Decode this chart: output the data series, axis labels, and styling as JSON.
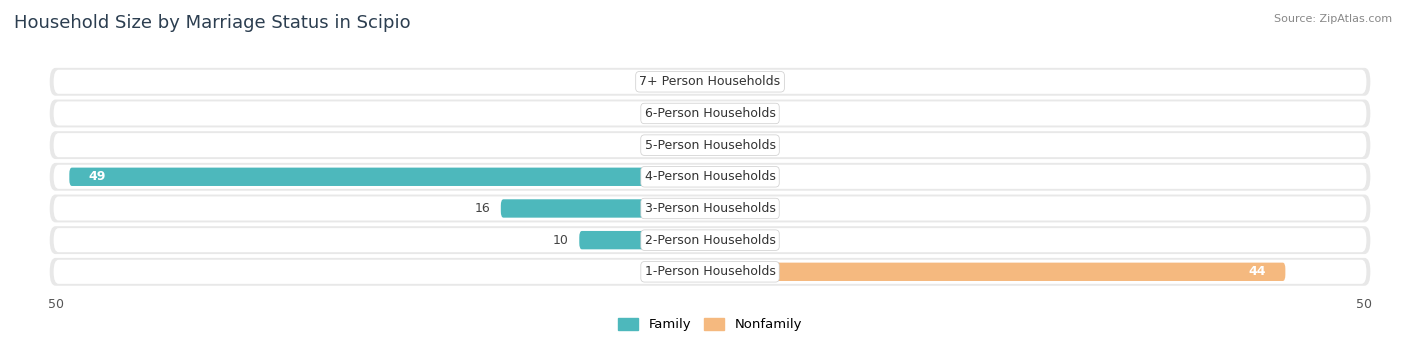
{
  "title": "Household Size by Marriage Status in Scipio",
  "source": "Source: ZipAtlas.com",
  "categories": [
    "7+ Person Households",
    "6-Person Households",
    "5-Person Households",
    "4-Person Households",
    "3-Person Households",
    "2-Person Households",
    "1-Person Households"
  ],
  "family": [
    0,
    0,
    0,
    49,
    16,
    10,
    0
  ],
  "nonfamily": [
    0,
    0,
    0,
    0,
    0,
    0,
    44
  ],
  "family_color": "#4db8bc",
  "nonfamily_color": "#f5b97f",
  "bg_row_color": "#e8e8e8",
  "xlim": 50,
  "title_fontsize": 13,
  "label_fontsize": 9,
  "value_fontsize": 9,
  "tick_fontsize": 9,
  "source_fontsize": 8
}
